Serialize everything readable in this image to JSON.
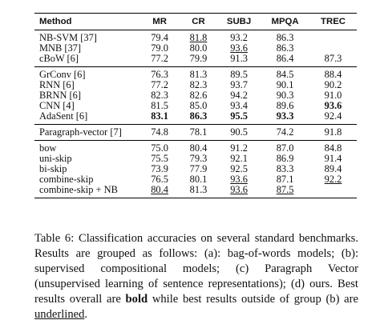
{
  "table": {
    "headers": [
      "Method",
      "MR",
      "CR",
      "SUBJ",
      "MPQA",
      "TREC"
    ],
    "groups": [
      {
        "rows": [
          {
            "method": "NB-SVM [37]",
            "cells": [
              {
                "v": "79.4"
              },
              {
                "v": "81.8",
                "u": true
              },
              {
                "v": "93.2"
              },
              {
                "v": "86.3"
              },
              {
                "v": ""
              }
            ]
          },
          {
            "method": "MNB [37]",
            "cells": [
              {
                "v": "79.0"
              },
              {
                "v": "80.0"
              },
              {
                "v": "93.6",
                "u": true
              },
              {
                "v": "86.3"
              },
              {
                "v": ""
              }
            ]
          },
          {
            "method": "cBoW [6]",
            "cells": [
              {
                "v": "77.2"
              },
              {
                "v": "79.9"
              },
              {
                "v": "91.3"
              },
              {
                "v": "86.4"
              },
              {
                "v": "87.3"
              }
            ]
          }
        ]
      },
      {
        "rows": [
          {
            "method": "GrConv [6]",
            "cells": [
              {
                "v": "76.3"
              },
              {
                "v": "81.3"
              },
              {
                "v": "89.5"
              },
              {
                "v": "84.5"
              },
              {
                "v": "88.4"
              }
            ]
          },
          {
            "method": "RNN [6]",
            "cells": [
              {
                "v": "77.2"
              },
              {
                "v": "82.3"
              },
              {
                "v": "93.7"
              },
              {
                "v": "90.1"
              },
              {
                "v": "90.2"
              }
            ]
          },
          {
            "method": "BRNN [6]",
            "cells": [
              {
                "v": "82.3"
              },
              {
                "v": "82.6"
              },
              {
                "v": "94.2"
              },
              {
                "v": "90.3"
              },
              {
                "v": "91.0"
              }
            ]
          },
          {
            "method": "CNN [4]",
            "cells": [
              {
                "v": "81.5"
              },
              {
                "v": "85.0"
              },
              {
                "v": "93.4"
              },
              {
                "v": "89.6"
              },
              {
                "v": "93.6",
                "b": true
              }
            ]
          },
          {
            "method": "AdaSent [6]",
            "cells": [
              {
                "v": "83.1",
                "b": true
              },
              {
                "v": "86.3",
                "b": true
              },
              {
                "v": "95.5",
                "b": true
              },
              {
                "v": "93.3",
                "b": true
              },
              {
                "v": "92.4"
              }
            ]
          }
        ]
      },
      {
        "rows": [
          {
            "method": "Paragraph-vector [7]",
            "cells": [
              {
                "v": "74.8"
              },
              {
                "v": "78.1"
              },
              {
                "v": "90.5"
              },
              {
                "v": "74.2"
              },
              {
                "v": "91.8"
              }
            ]
          }
        ]
      },
      {
        "rows": [
          {
            "method": "bow",
            "cells": [
              {
                "v": "75.0"
              },
              {
                "v": "80.4"
              },
              {
                "v": "91.2"
              },
              {
                "v": "87.0"
              },
              {
                "v": "84.8"
              }
            ]
          },
          {
            "method": "uni-skip",
            "cells": [
              {
                "v": "75.5"
              },
              {
                "v": "79.3"
              },
              {
                "v": "92.1"
              },
              {
                "v": "86.9"
              },
              {
                "v": "91.4"
              }
            ]
          },
          {
            "method": "bi-skip",
            "cells": [
              {
                "v": "73.9"
              },
              {
                "v": "77.9"
              },
              {
                "v": "92.5"
              },
              {
                "v": "83.3"
              },
              {
                "v": "89.4"
              }
            ]
          },
          {
            "method": "combine-skip",
            "cells": [
              {
                "v": "76.5"
              },
              {
                "v": "80.1"
              },
              {
                "v": "93.6",
                "u": true
              },
              {
                "v": "87.1"
              },
              {
                "v": "92.2",
                "u": true
              }
            ]
          },
          {
            "method": "combine-skip + NB",
            "cells": [
              {
                "v": "80.4",
                "u": true
              },
              {
                "v": "81.3"
              },
              {
                "v": "93.6",
                "u": true
              },
              {
                "v": "87.5",
                "u": true
              },
              {
                "v": ""
              }
            ]
          }
        ]
      }
    ]
  },
  "caption": {
    "part1": "Table 6: Classification accuracies on several standard benchmarks. Results are grouped as follows: (a): bag-of-words models; (b): supervised compositional models; (c) Paragraph Vector (unsupervised learning of sentence representations); (d) ours. Best results overall are ",
    "bold_word": "bold",
    "part2": " while best results outside of group (b) are ",
    "underlined_word": "underlined",
    "part3": "."
  }
}
